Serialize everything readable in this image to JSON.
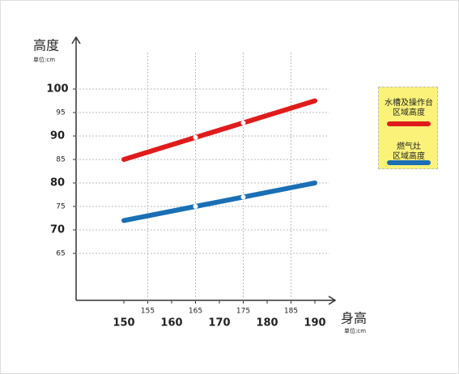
{
  "chart_data": {
    "type": "line",
    "y_label": "高度",
    "y_unit": "单位:cm",
    "x_label": "身高",
    "x_unit": "单位:cm",
    "x": [
      150,
      165,
      175,
      190
    ],
    "series": [
      {
        "name": "水槽及操作台\n区域高度",
        "color": "#e01b1b",
        "values": [
          85,
          89.7,
          92.8,
          97.5
        ]
      },
      {
        "name": "燃气灶\n区域高度",
        "color": "#1a6fb5",
        "values": [
          72,
          75,
          77,
          80
        ]
      }
    ],
    "xlim": [
      140,
      195
    ],
    "ylim": [
      55,
      110
    ],
    "xticks": [
      150,
      155,
      160,
      165,
      170,
      175,
      180,
      185,
      190
    ],
    "yticks": [
      65,
      70,
      75,
      80,
      85,
      90,
      95,
      100
    ],
    "grid": true
  }
}
